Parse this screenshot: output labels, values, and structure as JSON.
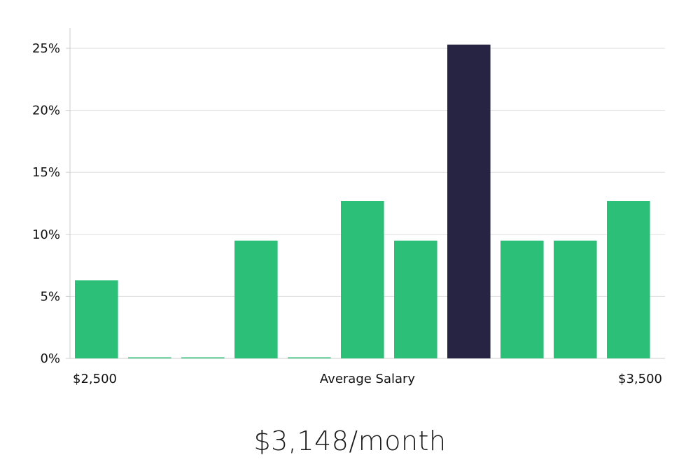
{
  "chart_data": {
    "type": "bar",
    "title": "",
    "xlabel": "Average Salary",
    "ylabel": "",
    "x_min_label": "$2,500",
    "x_max_label": "$3,500",
    "ylim": [
      0,
      25
    ],
    "yticks": [
      0,
      5,
      10,
      15,
      20,
      25
    ],
    "ytick_labels": [
      "0%",
      "5%",
      "10%",
      "15%",
      "20%",
      "25%"
    ],
    "grid": true,
    "values": [
      6.3,
      0,
      0,
      9.5,
      0,
      12.7,
      9.5,
      25.3,
      9.5,
      9.5,
      12.7
    ],
    "highlight_index": 7,
    "colors": {
      "bar": "#2bbf78",
      "highlight": "#272443",
      "grid": "#dddddd",
      "axis": "#cccccc"
    }
  },
  "salary_text": "$3,148/month"
}
